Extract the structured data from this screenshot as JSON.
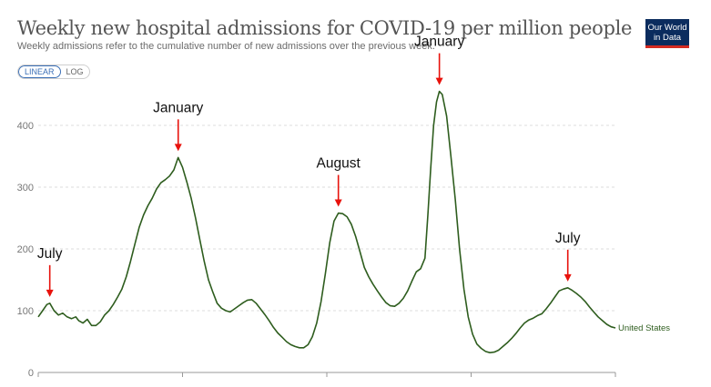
{
  "header": {
    "title": "Weekly new hospital admissions for COVID-19 per million people",
    "subtitle": "Weekly admissions refer to the cumulative number of new admissions over the previous week."
  },
  "logo": {
    "line1": "Our World",
    "line2": "in Data"
  },
  "scale_toggle": {
    "options": [
      "LINEAR",
      "LOG"
    ],
    "selected": "LINEAR"
  },
  "chart_data": {
    "type": "line",
    "ylim": [
      0,
      460
    ],
    "yticks": [
      0,
      100,
      200,
      300,
      400
    ],
    "grid": true,
    "series": [
      {
        "name": "United States",
        "color": "#2e5d1e",
        "values": [
          [
            0,
            90
          ],
          [
            3,
            100
          ],
          [
            6,
            110
          ],
          [
            8,
            112
          ],
          [
            11,
            100
          ],
          [
            14,
            93
          ],
          [
            17,
            96
          ],
          [
            20,
            90
          ],
          [
            23,
            87
          ],
          [
            26,
            90
          ],
          [
            28,
            84
          ],
          [
            31,
            80
          ],
          [
            34,
            86
          ],
          [
            37,
            76
          ],
          [
            40,
            76
          ],
          [
            43,
            82
          ],
          [
            46,
            93
          ],
          [
            49,
            100
          ],
          [
            52,
            110
          ],
          [
            55,
            122
          ],
          [
            58,
            135
          ],
          [
            61,
            155
          ],
          [
            64,
            180
          ],
          [
            67,
            208
          ],
          [
            70,
            235
          ],
          [
            73,
            255
          ],
          [
            76,
            270
          ],
          [
            79,
            282
          ],
          [
            82,
            297
          ],
          [
            85,
            307
          ],
          [
            88,
            312
          ],
          [
            91,
            318
          ],
          [
            94,
            328
          ],
          [
            97,
            348
          ],
          [
            100,
            332
          ],
          [
            103,
            308
          ],
          [
            106,
            282
          ],
          [
            109,
            250
          ],
          [
            112,
            215
          ],
          [
            115,
            180
          ],
          [
            118,
            150
          ],
          [
            121,
            130
          ],
          [
            124,
            112
          ],
          [
            127,
            104
          ],
          [
            130,
            100
          ],
          [
            133,
            98
          ],
          [
            136,
            103
          ],
          [
            139,
            108
          ],
          [
            142,
            113
          ],
          [
            145,
            117
          ],
          [
            148,
            118
          ],
          [
            151,
            112
          ],
          [
            154,
            103
          ],
          [
            157,
            94
          ],
          [
            160,
            84
          ],
          [
            163,
            73
          ],
          [
            166,
            64
          ],
          [
            169,
            57
          ],
          [
            172,
            50
          ],
          [
            175,
            45
          ],
          [
            178,
            42
          ],
          [
            181,
            40
          ],
          [
            184,
            40
          ],
          [
            187,
            45
          ],
          [
            190,
            58
          ],
          [
            193,
            80
          ],
          [
            196,
            115
          ],
          [
            199,
            160
          ],
          [
            202,
            210
          ],
          [
            205,
            245
          ],
          [
            208,
            258
          ],
          [
            211,
            257
          ],
          [
            214,
            252
          ],
          [
            217,
            240
          ],
          [
            220,
            220
          ],
          [
            223,
            195
          ],
          [
            226,
            170
          ],
          [
            229,
            155
          ],
          [
            232,
            143
          ],
          [
            235,
            132
          ],
          [
            238,
            122
          ],
          [
            241,
            113
          ],
          [
            244,
            108
          ],
          [
            247,
            107
          ],
          [
            250,
            112
          ],
          [
            253,
            120
          ],
          [
            256,
            132
          ],
          [
            259,
            148
          ],
          [
            262,
            163
          ],
          [
            265,
            168
          ],
          [
            268,
            185
          ],
          [
            270,
            255
          ],
          [
            272,
            330
          ],
          [
            274,
            400
          ],
          [
            276,
            438
          ],
          [
            278,
            455
          ],
          [
            280,
            450
          ],
          [
            283,
            415
          ],
          [
            286,
            350
          ],
          [
            289,
            280
          ],
          [
            292,
            200
          ],
          [
            295,
            135
          ],
          [
            298,
            90
          ],
          [
            301,
            62
          ],
          [
            304,
            46
          ],
          [
            307,
            39
          ],
          [
            310,
            34
          ],
          [
            313,
            32
          ],
          [
            316,
            33
          ],
          [
            319,
            36
          ],
          [
            322,
            42
          ],
          [
            325,
            48
          ],
          [
            328,
            55
          ],
          [
            331,
            63
          ],
          [
            334,
            72
          ],
          [
            337,
            80
          ],
          [
            340,
            85
          ],
          [
            343,
            88
          ],
          [
            346,
            92
          ],
          [
            349,
            95
          ],
          [
            352,
            103
          ],
          [
            355,
            112
          ],
          [
            358,
            122
          ],
          [
            361,
            132
          ],
          [
            364,
            135
          ],
          [
            367,
            137
          ],
          [
            370,
            133
          ],
          [
            373,
            128
          ],
          [
            376,
            122
          ],
          [
            379,
            115
          ],
          [
            382,
            106
          ],
          [
            385,
            98
          ],
          [
            388,
            90
          ],
          [
            391,
            84
          ],
          [
            394,
            78
          ],
          [
            397,
            74
          ],
          [
            400,
            72
          ]
        ]
      }
    ],
    "annotations": [
      {
        "text": "July",
        "x": 8,
        "value": 112
      },
      {
        "text": "January",
        "x": 97,
        "value": 348
      },
      {
        "text": "August",
        "x": 208,
        "value": 258
      },
      {
        "text": "January",
        "x": 278,
        "value": 455
      },
      {
        "text": "July",
        "x": 367,
        "value": 137
      }
    ]
  }
}
